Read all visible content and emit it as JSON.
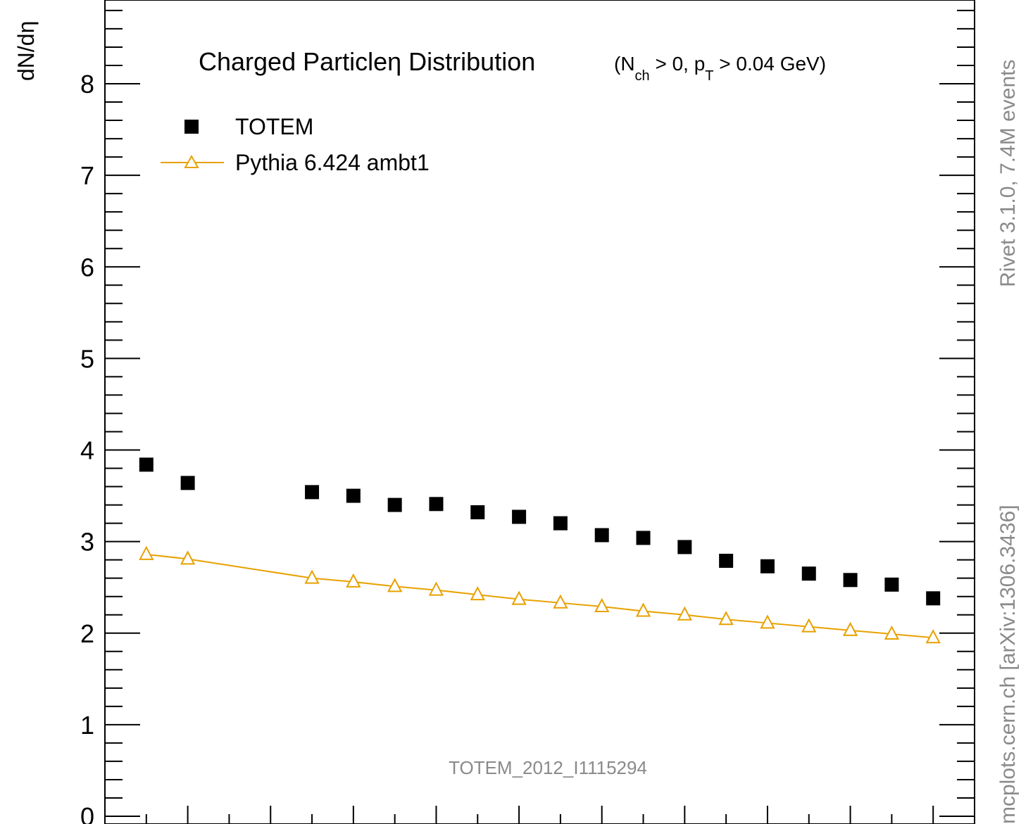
{
  "chart_data": {
    "type": "scatter",
    "title": "Charged Particle",
    "title_eta": "η",
    "title_rest": " Distribution",
    "subtitle": {
      "prefix": "(N",
      "sub1": "ch",
      "mid": " > 0, p",
      "sub2": "T",
      "suffix": " > 0.04 GeV)"
    },
    "ylabel": "dN/dη",
    "ylim": [
      0,
      8.8
    ],
    "xlim": [
      0,
      21
    ],
    "grid": false,
    "legend_placement": "top-left",
    "y_ticks": [
      0,
      1,
      2,
      3,
      4,
      5,
      6,
      7,
      8
    ],
    "y_tick_labels": [
      "0",
      "1",
      "2",
      "3",
      "4",
      "5",
      "6",
      "7",
      "8"
    ],
    "series": [
      {
        "name": "TOTEM",
        "marker": "filled-square",
        "color": "#000000",
        "x": [
          1,
          2,
          5,
          6,
          7,
          8,
          9,
          10,
          11,
          12,
          13,
          14,
          15,
          16,
          17,
          18,
          19,
          20
        ],
        "y": [
          3.84,
          3.64,
          3.54,
          3.5,
          3.4,
          3.41,
          3.32,
          3.27,
          3.2,
          3.07,
          3.04,
          2.94,
          2.79,
          2.73,
          2.65,
          2.58,
          2.53,
          2.38
        ]
      },
      {
        "name": "Pythia 6.424 ambt1",
        "marker": "open-triangle",
        "color": "#e8a100",
        "x": [
          1,
          2,
          5,
          6,
          7,
          8,
          9,
          10,
          11,
          12,
          13,
          14,
          15,
          16,
          17,
          18,
          19,
          20
        ],
        "y": [
          2.86,
          2.81,
          2.6,
          2.56,
          2.51,
          2.47,
          2.42,
          2.37,
          2.33,
          2.29,
          2.24,
          2.2,
          2.15,
          2.11,
          2.07,
          2.03,
          1.99,
          1.95
        ]
      }
    ]
  },
  "side_labels": {
    "right_top": "Rivet 3.1.0,  7.4M events",
    "right_bottom": "mcplots.cern.ch [arXiv:1306.3436]"
  },
  "watermark": "TOTEM_2012_I1115294",
  "colors": {
    "mc": "#e8a100",
    "data": "#000000",
    "side_text": "#8a8a8a"
  }
}
